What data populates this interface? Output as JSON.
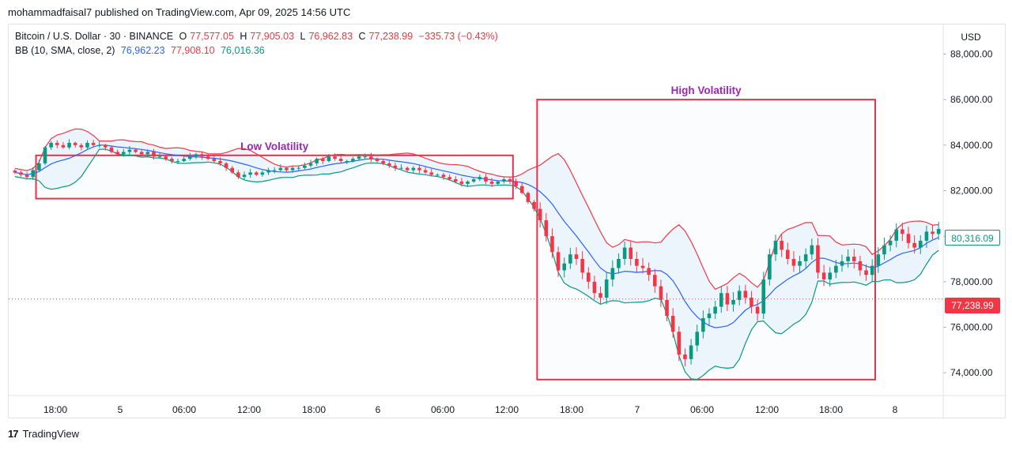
{
  "publish_line": "mohammadfaisal7 published on TradingView.com, Apr 09, 2025 14:56 UTC",
  "legend": {
    "symbol": "Bitcoin / U.S. Dollar · 30 · BINANCE",
    "open_label": "O",
    "open": "77,577.05",
    "high_label": "H",
    "high": "77,905.03",
    "low_label": "L",
    "low": "76,962.83",
    "close_label": "C",
    "close": "77,238.99",
    "change": "−335.73 (−0.43%)",
    "bb_label": "BB (10, SMA, close, 2)",
    "bb_basis": "76,962.23",
    "bb_upper": "77,908.10",
    "bb_lower": "76,016.36"
  },
  "currency": "USD",
  "last_price_tag": "80,316.09",
  "close_price_tag": "77,238.99",
  "footer": {
    "logo": "17",
    "brand": "TradingView"
  },
  "colors": {
    "up": "#089981",
    "down": "#f23645",
    "basis": "#2962ff",
    "upper": "#f23645",
    "lower": "#089981",
    "fill": "#e3f0fb",
    "box": "#e8314b",
    "annotation": "#9c27b0"
  },
  "chart_data": {
    "type": "candlestick",
    "y_ticks": [
      "88,000.00",
      "86,000.00",
      "84,000.00",
      "82,000.00",
      "80,000.00",
      "78,000.00",
      "76,000.00",
      "74,000.00"
    ],
    "x_ticks": [
      "18:00",
      "5",
      "06:00",
      "12:00",
      "18:00",
      "6",
      "06:00",
      "12:00",
      "18:00",
      "7",
      "06:00",
      "12:00",
      "18:00",
      "8"
    ],
    "ylim": [
      73000,
      89300
    ],
    "annotations": [
      {
        "label": "Low Volatility",
        "from_bar": 4,
        "to_bar": 82,
        "price_top": 83550,
        "price_bottom": 81650
      },
      {
        "label": "High Volatility",
        "from_bar": 87,
        "to_bar": 142,
        "price_top": 86000,
        "price_bottom": 73700
      }
    ],
    "bars_close": [
      82800,
      82700,
      82600,
      82900,
      83200,
      83900,
      84100,
      84000,
      83900,
      84100,
      84000,
      83900,
      84100,
      84000,
      84000,
      83900,
      83700,
      83600,
      83700,
      83800,
      83700,
      83600,
      83700,
      83500,
      83500,
      83400,
      83300,
      83300,
      83400,
      83500,
      83600,
      83500,
      83400,
      83300,
      83200,
      83000,
      82800,
      82600,
      82700,
      82800,
      82700,
      82800,
      82900,
      82900,
      83000,
      82900,
      83000,
      83000,
      83100,
      83200,
      83400,
      83300,
      83500,
      83400,
      83300,
      83300,
      83400,
      83500,
      83500,
      83400,
      83300,
      83200,
      83100,
      83000,
      83000,
      82900,
      83000,
      82900,
      82800,
      82700,
      82700,
      82600,
      82500,
      82400,
      82300,
      82400,
      82500,
      82600,
      82400,
      82300,
      82400,
      82500,
      82400,
      82200,
      81900,
      81500,
      81200,
      80700,
      80000,
      79300,
      78500,
      78800,
      79200,
      79000,
      78400,
      78000,
      77500,
      77300,
      78100,
      78600,
      79000,
      79500,
      79000,
      78700,
      78600,
      78300,
      77800,
      77200,
      76500,
      75800,
      74800,
      74600,
      75200,
      75800,
      76400,
      76600,
      76900,
      77500,
      77000,
      77200,
      77600,
      77300,
      76900,
      76600,
      78100,
      79200,
      79800,
      79400,
      79000,
      78700,
      78900,
      79200,
      79600,
      78400,
      78100,
      78400,
      78700,
      78900,
      79100,
      78900,
      78500,
      78300,
      78700,
      79200,
      79600,
      79800,
      80300,
      80100,
      79700,
      79500,
      79800,
      80200,
      80100,
      80316
    ]
  }
}
